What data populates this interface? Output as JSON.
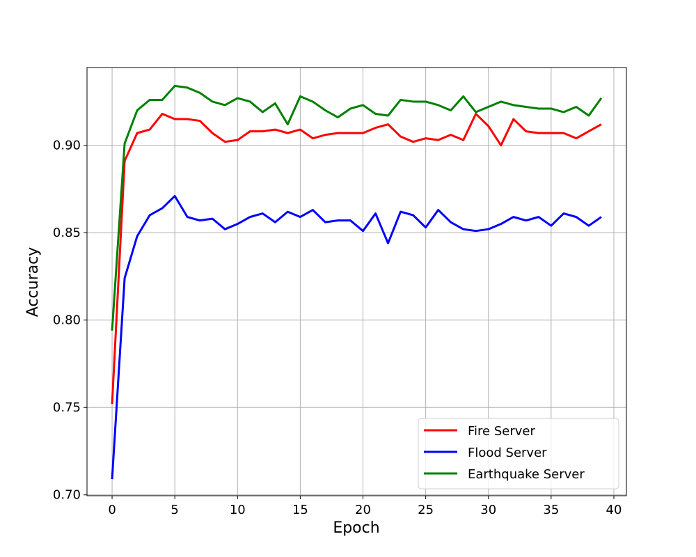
{
  "chart_data": {
    "type": "line",
    "title": "",
    "xlabel": "Epoch",
    "ylabel": "Accuracy",
    "xlim": [
      -2,
      41
    ],
    "ylim": [
      0.6995,
      0.9445
    ],
    "x_ticks": [
      0,
      5,
      10,
      15,
      20,
      25,
      30,
      35,
      40
    ],
    "y_ticks": [
      0.7,
      0.75,
      0.8,
      0.85,
      0.9
    ],
    "x_tick_labels": [
      "0",
      "5",
      "10",
      "15",
      "20",
      "25",
      "30",
      "35",
      "40"
    ],
    "y_tick_labels": [
      "0.70",
      "0.75",
      "0.80",
      "0.85",
      "0.90"
    ],
    "grid": true,
    "legend_position": "lower-right",
    "x": [
      0,
      1,
      2,
      3,
      4,
      5,
      6,
      7,
      8,
      9,
      10,
      11,
      12,
      13,
      14,
      15,
      16,
      17,
      18,
      19,
      20,
      21,
      22,
      23,
      24,
      25,
      26,
      27,
      28,
      29,
      30,
      31,
      32,
      33,
      34,
      35,
      36,
      37,
      38,
      39
    ],
    "series": [
      {
        "name": "Fire Server",
        "color": "#ff0000",
        "values": [
          0.752,
          0.891,
          0.907,
          0.909,
          0.918,
          0.915,
          0.915,
          0.914,
          0.907,
          0.902,
          0.903,
          0.908,
          0.908,
          0.909,
          0.907,
          0.909,
          0.904,
          0.906,
          0.907,
          0.907,
          0.907,
          0.91,
          0.912,
          0.905,
          0.902,
          0.904,
          0.903,
          0.906,
          0.903,
          0.918,
          0.911,
          0.9,
          0.915,
          0.908,
          0.907,
          0.907,
          0.907,
          0.904,
          0.908,
          0.912
        ]
      },
      {
        "name": "Flood Server",
        "color": "#0000ff",
        "values": [
          0.709,
          0.824,
          0.848,
          0.86,
          0.864,
          0.871,
          0.859,
          0.857,
          0.858,
          0.852,
          0.855,
          0.859,
          0.861,
          0.856,
          0.862,
          0.859,
          0.863,
          0.856,
          0.857,
          0.857,
          0.851,
          0.861,
          0.844,
          0.862,
          0.86,
          0.853,
          0.863,
          0.856,
          0.852,
          0.851,
          0.852,
          0.855,
          0.859,
          0.857,
          0.859,
          0.854,
          0.861,
          0.859,
          0.854,
          0.859
        ]
      },
      {
        "name": "Earthquake Server",
        "color": "#008000",
        "values": [
          0.794,
          0.901,
          0.92,
          0.926,
          0.926,
          0.934,
          0.933,
          0.93,
          0.925,
          0.923,
          0.927,
          0.925,
          0.919,
          0.924,
          0.912,
          0.928,
          0.925,
          0.92,
          0.916,
          0.921,
          0.923,
          0.918,
          0.917,
          0.926,
          0.925,
          0.925,
          0.923,
          0.92,
          0.928,
          0.919,
          0.922,
          0.925,
          0.923,
          0.922,
          0.921,
          0.921,
          0.919,
          0.922,
          0.917,
          0.927
        ]
      }
    ]
  }
}
